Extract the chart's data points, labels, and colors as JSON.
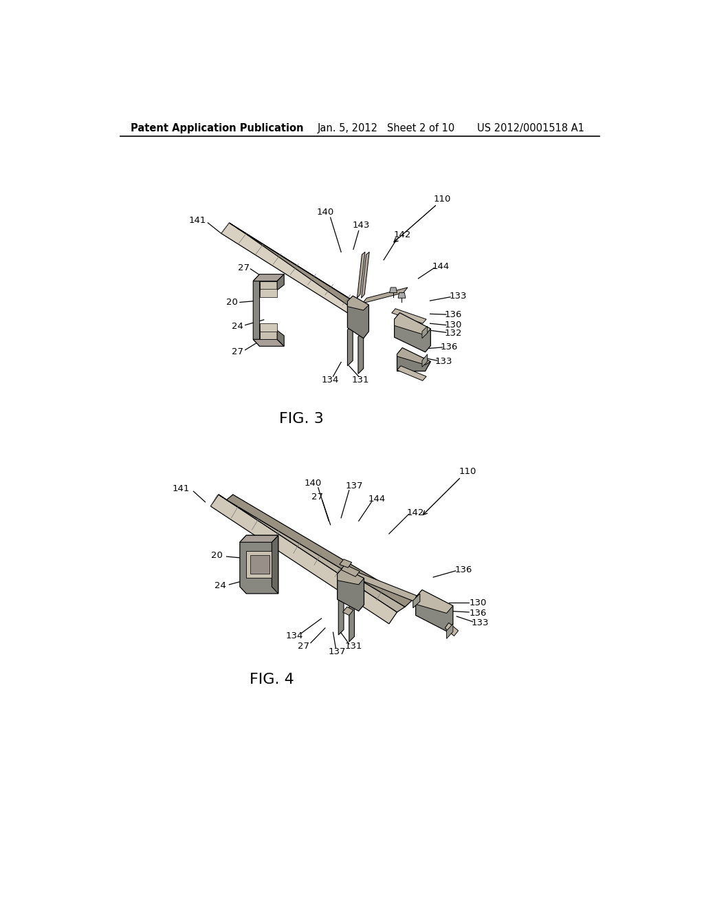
{
  "background_color": "#ffffff",
  "header_left": "Patent Application Publication",
  "header_center": "Jan. 5, 2012   Sheet 2 of 10",
  "header_right": "US 2012/0001518 A1",
  "fig3_label": "FIG. 3",
  "fig4_label": "FIG. 4"
}
